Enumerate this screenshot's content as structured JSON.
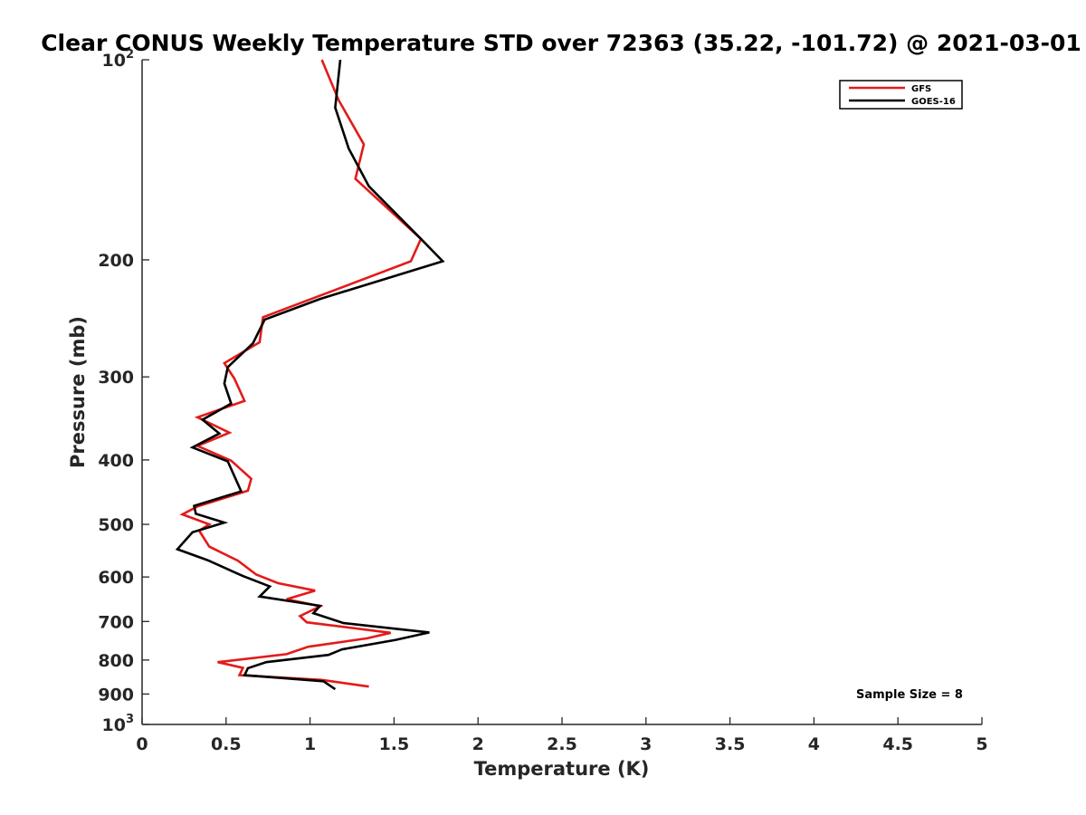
{
  "chart_data": {
    "type": "line",
    "title": "Clear CONUS Weekly Temperature STD over 72363 (35.22, -101.72) @ 2021-03-01",
    "xlabel": "Temperature (K)",
    "ylabel": "Pressure (mb)",
    "xlim": [
      0,
      5
    ],
    "ylim": [
      100,
      1000
    ],
    "y_scale": "log",
    "y_reversed": true,
    "x_ticks": [
      0,
      0.5,
      1,
      1.5,
      2,
      2.5,
      3,
      3.5,
      4,
      4.5,
      5
    ],
    "x_tick_labels": [
      "0",
      "0.5",
      "1",
      "1.5",
      "2",
      "2.5",
      "3",
      "3.5",
      "4",
      "4.5",
      "5"
    ],
    "y_ticks": [
      100,
      200,
      300,
      400,
      500,
      600,
      700,
      800,
      900,
      1000
    ],
    "y_tick_labels": [
      {
        "base": "10",
        "sup": "2"
      },
      {
        "base": "200",
        "sup": ""
      },
      {
        "base": "300",
        "sup": ""
      },
      {
        "base": "400",
        "sup": ""
      },
      {
        "base": "500",
        "sup": ""
      },
      {
        "base": "600",
        "sup": ""
      },
      {
        "base": "700",
        "sup": ""
      },
      {
        "base": "800",
        "sup": ""
      },
      {
        "base": "900",
        "sup": ""
      },
      {
        "base": "10",
        "sup": "3"
      }
    ],
    "grid": false,
    "legend_position": "top-right",
    "annotation": "Sample Size = 8",
    "series": [
      {
        "name": "GFS",
        "color": "#e41a1a",
        "points": [
          [
            1.07,
            100
          ],
          [
            1.17,
            115
          ],
          [
            1.32,
            134
          ],
          [
            1.27,
            151
          ],
          [
            1.66,
            186
          ],
          [
            1.6,
            201
          ],
          [
            0.72,
            244
          ],
          [
            0.7,
            266
          ],
          [
            0.49,
            286
          ],
          [
            0.55,
            302
          ],
          [
            0.61,
            326
          ],
          [
            0.33,
            345
          ],
          [
            0.52,
            364
          ],
          [
            0.33,
            381
          ],
          [
            0.53,
            401
          ],
          [
            0.65,
            427
          ],
          [
            0.63,
            445
          ],
          [
            0.33,
            470
          ],
          [
            0.24,
            483
          ],
          [
            0.4,
            500
          ],
          [
            0.34,
            511
          ],
          [
            0.4,
            540
          ],
          [
            0.57,
            567
          ],
          [
            0.68,
            595
          ],
          [
            0.81,
            613
          ],
          [
            1.03,
            629
          ],
          [
            0.86,
            648
          ],
          [
            1.06,
            664
          ],
          [
            0.94,
            687
          ],
          [
            0.98,
            702
          ],
          [
            1.48,
            728
          ],
          [
            1.34,
            742
          ],
          [
            0.99,
            764
          ],
          [
            0.86,
            784
          ],
          [
            0.45,
            806
          ],
          [
            0.6,
            822
          ],
          [
            0.58,
            843
          ],
          [
            1.07,
            857
          ],
          [
            1.35,
            877
          ]
        ]
      },
      {
        "name": "GOES-16",
        "color": "#000000",
        "points": [
          [
            1.18,
            100
          ],
          [
            1.15,
            118
          ],
          [
            1.23,
            136
          ],
          [
            1.35,
            155
          ],
          [
            1.66,
            186
          ],
          [
            1.79,
            201
          ],
          [
            1.06,
            229
          ],
          [
            0.73,
            246
          ],
          [
            0.66,
            267
          ],
          [
            0.51,
            290
          ],
          [
            0.49,
            307
          ],
          [
            0.53,
            329
          ],
          [
            0.36,
            348
          ],
          [
            0.46,
            365
          ],
          [
            0.3,
            383
          ],
          [
            0.51,
            402
          ],
          [
            0.59,
            446
          ],
          [
            0.31,
            469
          ],
          [
            0.32,
            482
          ],
          [
            0.49,
            497
          ],
          [
            0.3,
            514
          ],
          [
            0.21,
            545
          ],
          [
            0.39,
            566
          ],
          [
            0.6,
            598
          ],
          [
            0.76,
            620
          ],
          [
            0.7,
            642
          ],
          [
            1.06,
            663
          ],
          [
            1.02,
            680
          ],
          [
            1.2,
            704
          ],
          [
            1.71,
            727
          ],
          [
            1.51,
            746
          ],
          [
            1.19,
            771
          ],
          [
            1.11,
            786
          ],
          [
            0.74,
            806
          ],
          [
            0.63,
            823
          ],
          [
            0.61,
            843
          ],
          [
            1.08,
            861
          ],
          [
            1.15,
            885
          ]
        ]
      }
    ]
  }
}
